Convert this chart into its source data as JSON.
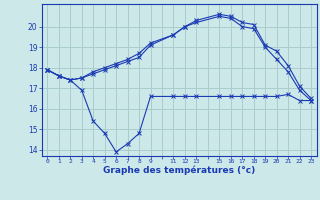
{
  "xlabel": "Graphe des températures (°c)",
  "background_color": "#cce8e8",
  "grid_color": "#aacccc",
  "line_color": "#1a3ab4",
  "hours": [
    0,
    1,
    2,
    3,
    4,
    5,
    6,
    7,
    8,
    9,
    11,
    12,
    13,
    15,
    16,
    17,
    18,
    19,
    20,
    21,
    22,
    23
  ],
  "line1": [
    17.9,
    17.6,
    17.4,
    16.9,
    15.4,
    14.8,
    13.9,
    14.3,
    14.8,
    16.6,
    16.6,
    16.6,
    16.6,
    16.6,
    16.6,
    16.6,
    16.6,
    16.6,
    16.6,
    16.7,
    16.4,
    16.4
  ],
  "line2": [
    17.9,
    17.6,
    17.4,
    17.5,
    17.7,
    17.9,
    18.1,
    18.3,
    18.5,
    19.1,
    19.6,
    20.0,
    20.2,
    20.5,
    20.4,
    20.0,
    19.9,
    19.0,
    18.4,
    17.8,
    16.9,
    16.4
  ],
  "line3": [
    17.9,
    17.6,
    17.4,
    17.5,
    17.8,
    18.0,
    18.2,
    18.4,
    18.7,
    19.2,
    19.6,
    20.0,
    20.3,
    20.6,
    20.5,
    20.2,
    20.1,
    19.1,
    18.8,
    18.1,
    17.1,
    16.5
  ],
  "yticks": [
    14,
    15,
    16,
    17,
    18,
    19,
    20
  ],
  "xtick_labels": [
    "0",
    "1",
    "2",
    "3",
    "4",
    "5",
    "6",
    "7",
    "8",
    "9",
    "",
    "11",
    "12",
    "13",
    "",
    "15",
    "16",
    "17",
    "18",
    "19",
    "20",
    "21",
    "22",
    "23"
  ],
  "xtick_positions": [
    0,
    1,
    2,
    3,
    4,
    5,
    6,
    7,
    8,
    9,
    10,
    11,
    12,
    13,
    14,
    15,
    16,
    17,
    18,
    19,
    20,
    21,
    22,
    23
  ]
}
